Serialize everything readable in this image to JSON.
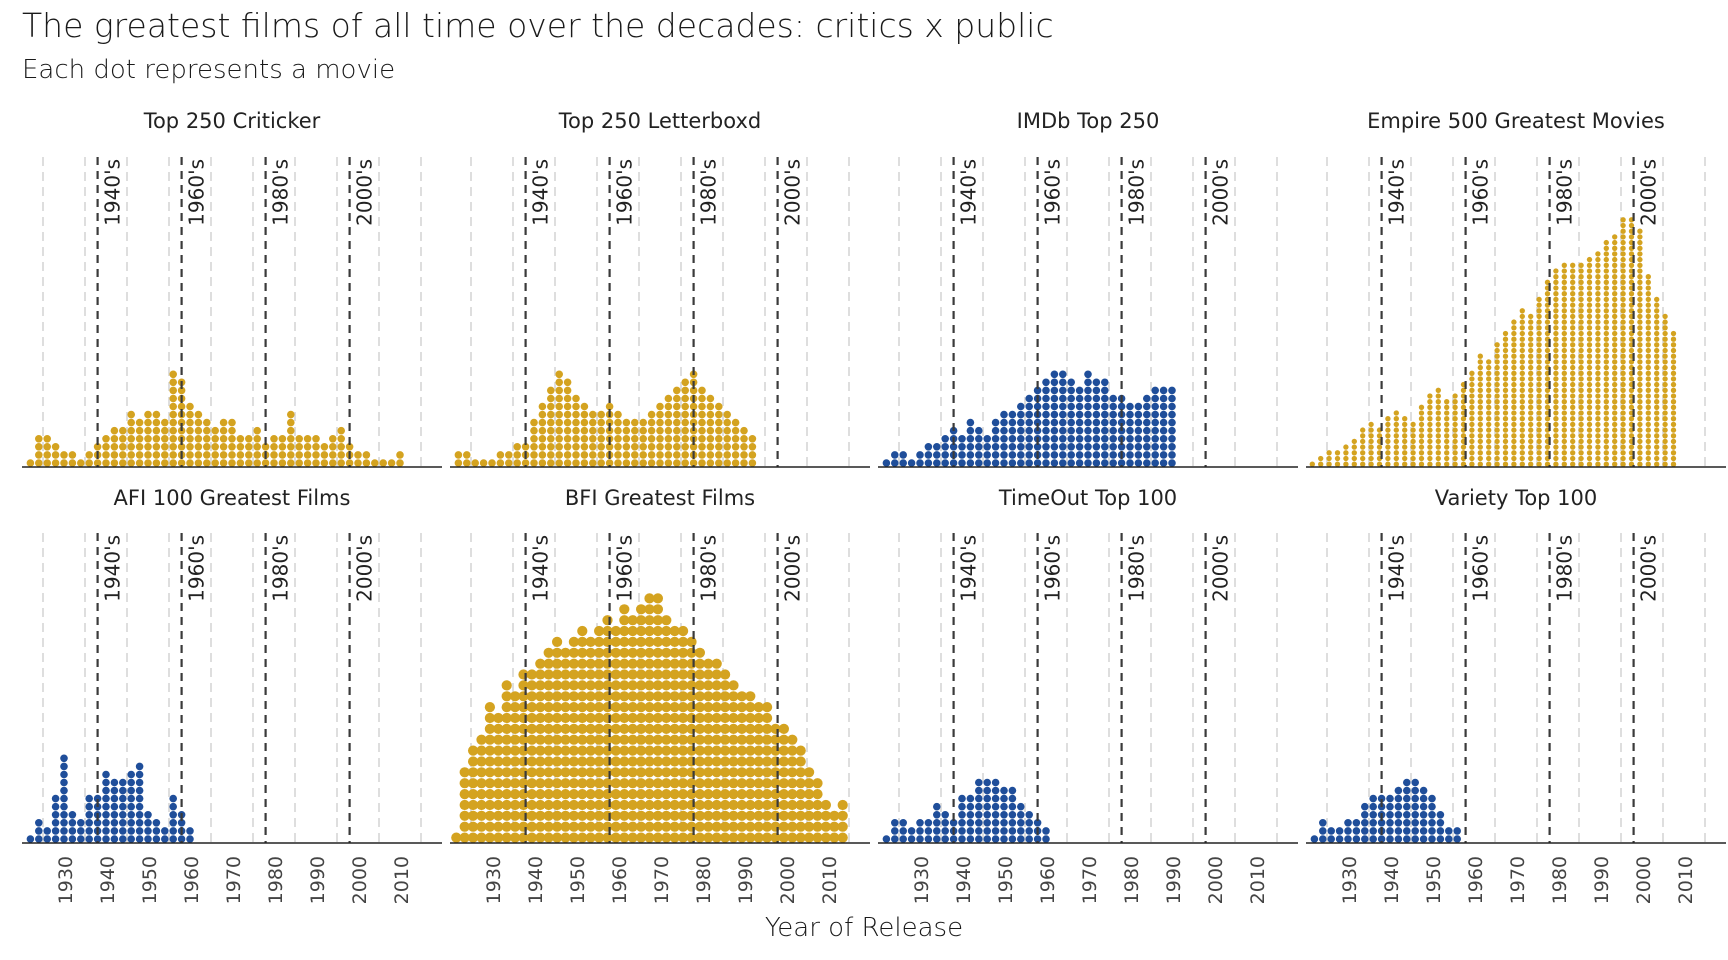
{
  "title": "The greatest films of all time over the decades: critics x public",
  "subtitle": "Each dot represents a movie",
  "xlabel": "Year of Release",
  "colors": {
    "critics": "#D4A320",
    "public": "#1F4E9A",
    "decade_line": "#3a3a3a",
    "grid": "#dedede",
    "axis": "#222222"
  },
  "decade_labels": [
    {
      "label": "1940's",
      "year": 1938
    },
    {
      "label": "1960's",
      "year": 1958
    },
    {
      "label": "1980's",
      "year": 1978
    },
    {
      "label": "2000's",
      "year": 1998
    }
  ],
  "chart_data": [
    {
      "type": "scatter",
      "title": "Top 250 Criticker",
      "group": "critics",
      "bin_years": 2,
      "x_ticks": [],
      "xlim": [
        1920,
        2020
      ],
      "bins": [
        [
          1921,
          1
        ],
        [
          1923,
          4
        ],
        [
          1925,
          4
        ],
        [
          1927,
          3
        ],
        [
          1929,
          2
        ],
        [
          1931,
          2
        ],
        [
          1933,
          1
        ],
        [
          1935,
          2
        ],
        [
          1937,
          3
        ],
        [
          1939,
          4
        ],
        [
          1941,
          5
        ],
        [
          1943,
          5
        ],
        [
          1945,
          7
        ],
        [
          1947,
          6
        ],
        [
          1949,
          7
        ],
        [
          1951,
          7
        ],
        [
          1953,
          6
        ],
        [
          1955,
          12
        ],
        [
          1957,
          11
        ],
        [
          1959,
          8
        ],
        [
          1961,
          7
        ],
        [
          1963,
          6
        ],
        [
          1965,
          5
        ],
        [
          1967,
          6
        ],
        [
          1969,
          6
        ],
        [
          1971,
          4
        ],
        [
          1973,
          4
        ],
        [
          1975,
          5
        ],
        [
          1977,
          3
        ],
        [
          1979,
          4
        ],
        [
          1981,
          4
        ],
        [
          1983,
          7
        ],
        [
          1985,
          4
        ],
        [
          1987,
          4
        ],
        [
          1989,
          4
        ],
        [
          1991,
          3
        ],
        [
          1993,
          4
        ],
        [
          1995,
          5
        ],
        [
          1997,
          3
        ],
        [
          1999,
          2
        ],
        [
          2001,
          2
        ],
        [
          2003,
          1
        ],
        [
          2005,
          1
        ],
        [
          2007,
          1
        ],
        [
          2009,
          2
        ]
      ]
    },
    {
      "type": "scatter",
      "title": "Top 250 Letterboxd",
      "group": "critics",
      "bin_years": 2,
      "x_ticks": [],
      "xlim": [
        1920,
        2020
      ],
      "bins": [
        [
          1921,
          2
        ],
        [
          1923,
          2
        ],
        [
          1925,
          1
        ],
        [
          1927,
          1
        ],
        [
          1929,
          1
        ],
        [
          1931,
          2
        ],
        [
          1933,
          2
        ],
        [
          1935,
          3
        ],
        [
          1937,
          3
        ],
        [
          1939,
          6
        ],
        [
          1941,
          8
        ],
        [
          1943,
          10
        ],
        [
          1945,
          12
        ],
        [
          1947,
          11
        ],
        [
          1949,
          9
        ],
        [
          1951,
          8
        ],
        [
          1953,
          7
        ],
        [
          1955,
          7
        ],
        [
          1957,
          8
        ],
        [
          1959,
          7
        ],
        [
          1961,
          6
        ],
        [
          1963,
          6
        ],
        [
          1965,
          6
        ],
        [
          1967,
          7
        ],
        [
          1969,
          8
        ],
        [
          1971,
          9
        ],
        [
          1973,
          10
        ],
        [
          1975,
          11
        ],
        [
          1977,
          12
        ],
        [
          1979,
          10
        ],
        [
          1981,
          9
        ],
        [
          1983,
          8
        ],
        [
          1985,
          7
        ],
        [
          1987,
          6
        ],
        [
          1989,
          5
        ],
        [
          1991,
          4
        ]
      ]
    },
    {
      "type": "scatter",
      "title": "IMDb Top 250",
      "group": "public",
      "bin_years": 2,
      "x_ticks": [],
      "xlim": [
        1920,
        2020
      ],
      "bins": [
        [
          1921,
          1
        ],
        [
          1923,
          2
        ],
        [
          1925,
          2
        ],
        [
          1927,
          1
        ],
        [
          1929,
          2
        ],
        [
          1931,
          3
        ],
        [
          1933,
          3
        ],
        [
          1935,
          4
        ],
        [
          1937,
          5
        ],
        [
          1939,
          4
        ],
        [
          1941,
          6
        ],
        [
          1943,
          5
        ],
        [
          1945,
          4
        ],
        [
          1947,
          6
        ],
        [
          1949,
          7
        ],
        [
          1951,
          7
        ],
        [
          1953,
          8
        ],
        [
          1955,
          9
        ],
        [
          1957,
          10
        ],
        [
          1959,
          11
        ],
        [
          1961,
          12
        ],
        [
          1963,
          12
        ],
        [
          1965,
          11
        ],
        [
          1967,
          10
        ],
        [
          1969,
          12
        ],
        [
          1971,
          11
        ],
        [
          1973,
          11
        ],
        [
          1975,
          9
        ],
        [
          1977,
          9
        ],
        [
          1979,
          8
        ],
        [
          1981,
          8
        ],
        [
          1983,
          9
        ],
        [
          1985,
          10
        ],
        [
          1987,
          10
        ],
        [
          1989,
          10
        ]
      ]
    },
    {
      "type": "scatter",
      "title": "Empire 500 Greatest Movies",
      "group": "critics",
      "bin_years": 1,
      "x_ticks": [],
      "xlim": [
        1920,
        2020
      ],
      "bins": [
        [
          1921,
          1
        ],
        [
          1923,
          2
        ],
        [
          1925,
          3
        ],
        [
          1927,
          3
        ],
        [
          1929,
          4
        ],
        [
          1931,
          5
        ],
        [
          1933,
          7
        ],
        [
          1935,
          8
        ],
        [
          1937,
          7
        ],
        [
          1939,
          9
        ],
        [
          1941,
          10
        ],
        [
          1943,
          9
        ],
        [
          1945,
          8
        ],
        [
          1947,
          11
        ],
        [
          1949,
          13
        ],
        [
          1951,
          14
        ],
        [
          1953,
          12
        ],
        [
          1955,
          13
        ],
        [
          1957,
          15
        ],
        [
          1959,
          17
        ],
        [
          1961,
          20
        ],
        [
          1963,
          19
        ],
        [
          1965,
          22
        ],
        [
          1967,
          24
        ],
        [
          1969,
          26
        ],
        [
          1971,
          28
        ],
        [
          1973,
          27
        ],
        [
          1975,
          30
        ],
        [
          1977,
          33
        ],
        [
          1979,
          35
        ],
        [
          1981,
          36
        ],
        [
          1983,
          36
        ],
        [
          1985,
          36
        ],
        [
          1987,
          37
        ],
        [
          1989,
          38
        ],
        [
          1991,
          40
        ],
        [
          1993,
          41
        ],
        [
          1995,
          44
        ],
        [
          1997,
          44
        ],
        [
          1999,
          42
        ],
        [
          2001,
          34
        ],
        [
          2003,
          30
        ],
        [
          2005,
          27
        ],
        [
          2007,
          24
        ]
      ]
    },
    {
      "type": "scatter",
      "title": "AFI 100 Greatest Films",
      "group": "public",
      "bin_years": 2,
      "x_ticks": [
        1930,
        1940,
        1950,
        1960,
        1970,
        1980,
        1990,
        2000,
        2010
      ],
      "xlim": [
        1920,
        2020
      ],
      "bins": [
        [
          1921,
          1
        ],
        [
          1923,
          3
        ],
        [
          1925,
          2
        ],
        [
          1927,
          6
        ],
        [
          1929,
          11
        ],
        [
          1931,
          4
        ],
        [
          1933,
          3
        ],
        [
          1935,
          6
        ],
        [
          1937,
          6
        ],
        [
          1939,
          9
        ],
        [
          1941,
          8
        ],
        [
          1943,
          8
        ],
        [
          1945,
          9
        ],
        [
          1947,
          10
        ],
        [
          1949,
          4
        ],
        [
          1951,
          3
        ],
        [
          1953,
          2
        ],
        [
          1955,
          6
        ],
        [
          1957,
          4
        ],
        [
          1959,
          2
        ]
      ]
    },
    {
      "type": "scatter",
      "title": "BFI Greatest Films",
      "group": "critics",
      "bin_years": 1,
      "x_ticks": [
        1930,
        1940,
        1950,
        1960,
        1970,
        1980,
        1990,
        2000,
        2010
      ],
      "xlim": [
        1920,
        2020
      ],
      "bins": [
        [
          1921,
          1
        ],
        [
          1923,
          7
        ],
        [
          1925,
          9
        ],
        [
          1927,
          10
        ],
        [
          1929,
          13
        ],
        [
          1931,
          12
        ],
        [
          1933,
          15
        ],
        [
          1935,
          14
        ],
        [
          1937,
          16
        ],
        [
          1939,
          16
        ],
        [
          1941,
          17
        ],
        [
          1943,
          18
        ],
        [
          1945,
          19
        ],
        [
          1947,
          18
        ],
        [
          1949,
          19
        ],
        [
          1951,
          20
        ],
        [
          1953,
          19
        ],
        [
          1955,
          20
        ],
        [
          1957,
          21
        ],
        [
          1959,
          20
        ],
        [
          1961,
          22
        ],
        [
          1963,
          21
        ],
        [
          1965,
          22
        ],
        [
          1967,
          23
        ],
        [
          1969,
          23
        ],
        [
          1971,
          21
        ],
        [
          1973,
          20
        ],
        [
          1975,
          20
        ],
        [
          1977,
          19
        ],
        [
          1979,
          18
        ],
        [
          1981,
          17
        ],
        [
          1983,
          17
        ],
        [
          1985,
          16
        ],
        [
          1987,
          15
        ],
        [
          1989,
          14
        ],
        [
          1991,
          14
        ],
        [
          1993,
          13
        ],
        [
          1995,
          13
        ],
        [
          1997,
          11
        ],
        [
          1999,
          11
        ],
        [
          2001,
          10
        ],
        [
          2003,
          9
        ],
        [
          2005,
          7
        ],
        [
          2007,
          6
        ],
        [
          2009,
          4
        ],
        [
          2011,
          3
        ],
        [
          2013,
          4
        ]
      ]
    },
    {
      "type": "scatter",
      "title": "TimeOut Top 100",
      "group": "public",
      "bin_years": 2,
      "x_ticks": [
        1930,
        1940,
        1950,
        1960,
        1970,
        1980,
        1990,
        2000,
        2010
      ],
      "xlim": [
        1920,
        2020
      ],
      "bins": [
        [
          1921,
          1
        ],
        [
          1923,
          3
        ],
        [
          1925,
          3
        ],
        [
          1927,
          2
        ],
        [
          1929,
          3
        ],
        [
          1931,
          3
        ],
        [
          1933,
          5
        ],
        [
          1935,
          4
        ],
        [
          1937,
          3
        ],
        [
          1939,
          6
        ],
        [
          1941,
          6
        ],
        [
          1943,
          8
        ],
        [
          1945,
          8
        ],
        [
          1947,
          8
        ],
        [
          1949,
          7
        ],
        [
          1951,
          7
        ],
        [
          1953,
          5
        ],
        [
          1955,
          4
        ],
        [
          1957,
          3
        ],
        [
          1959,
          2
        ]
      ]
    },
    {
      "type": "scatter",
      "title": "Variety Top 100",
      "group": "public",
      "bin_years": 2,
      "x_ticks": [
        1930,
        1940,
        1950,
        1960,
        1970,
        1980,
        1990,
        2000,
        2010
      ],
      "xlim": [
        1920,
        2020
      ],
      "bins": [
        [
          1921,
          1
        ],
        [
          1923,
          3
        ],
        [
          1925,
          2
        ],
        [
          1927,
          2
        ],
        [
          1929,
          3
        ],
        [
          1931,
          3
        ],
        [
          1933,
          5
        ],
        [
          1935,
          6
        ],
        [
          1937,
          6
        ],
        [
          1939,
          6
        ],
        [
          1941,
          7
        ],
        [
          1943,
          8
        ],
        [
          1945,
          8
        ],
        [
          1947,
          7
        ],
        [
          1949,
          6
        ],
        [
          1951,
          4
        ],
        [
          1953,
          2
        ],
        [
          1955,
          2
        ]
      ]
    }
  ]
}
